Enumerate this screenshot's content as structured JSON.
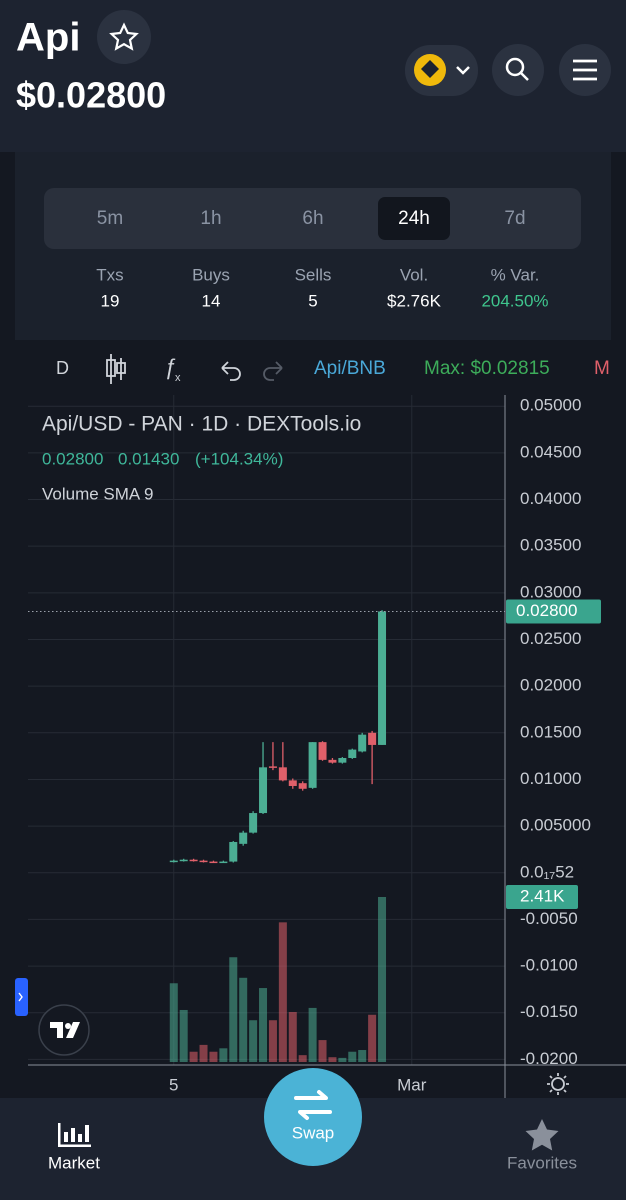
{
  "header": {
    "title": "Api",
    "price": "$0.02800"
  },
  "timeframes": {
    "options": [
      "5m",
      "1h",
      "6h",
      "24h",
      "7d"
    ],
    "active": 3
  },
  "stats": {
    "labels": [
      "Txs",
      "Buys",
      "Sells",
      "Vol.",
      "% Var."
    ],
    "values": [
      "19",
      "14",
      "5",
      "$2.76K",
      "204.50%"
    ]
  },
  "toolbar": {
    "interval": "D",
    "pair": "Api/BNB",
    "max": "Max: $0.02815",
    "min": "M"
  },
  "chart_data": {
    "type": "candlestick",
    "title": "Api/USD - PAN · 1D · DEXTools.io",
    "legend_values": [
      "0.02800",
      "0.01430",
      "(+104.34%)"
    ],
    "indicator": "Volume SMA 9",
    "open": [
      0.0012,
      0.0013,
      0.0014,
      0.0013,
      0.0012,
      0.0011,
      0.0012,
      0.0031,
      0.0043,
      0.0064,
      0.0114,
      0.0113,
      0.0099,
      0.0096,
      0.0091,
      0.014,
      0.0121,
      0.0118,
      0.0123,
      0.013,
      0.015,
      0.0137
    ],
    "high": [
      0.0014,
      0.0015,
      0.0015,
      0.0014,
      0.0013,
      0.0013,
      0.0034,
      0.0045,
      0.0066,
      0.014,
      0.014,
      0.014,
      0.0101,
      0.0098,
      0.014,
      0.0141,
      0.0123,
      0.0124,
      0.0133,
      0.015,
      0.0152,
      0.02815
    ],
    "low": [
      0.0011,
      0.0012,
      0.0012,
      0.0011,
      0.0011,
      0.0011,
      0.0011,
      0.0029,
      0.0042,
      0.0063,
      0.011,
      0.0098,
      0.009,
      0.0088,
      0.009,
      0.012,
      0.0117,
      0.0117,
      0.0122,
      0.0129,
      0.0095,
      0.0137
    ],
    "close": [
      0.0013,
      0.0014,
      0.0013,
      0.0012,
      0.0011,
      0.0012,
      0.0033,
      0.0043,
      0.0064,
      0.0113,
      0.0113,
      0.0099,
      0.0093,
      0.009,
      0.014,
      0.0121,
      0.0118,
      0.0123,
      0.0132,
      0.0148,
      0.0137,
      0.028
    ],
    "volume": [
      1150,
      760,
      150,
      250,
      150,
      200,
      1530,
      1230,
      610,
      1080,
      610,
      2040,
      730,
      100,
      790,
      320,
      70,
      60,
      150,
      175,
      690,
      2410
    ],
    "ylim": [
      -0.0206,
      0.0512
    ],
    "yticks": [
      {
        "value": 0.05,
        "label": "0.05000"
      },
      {
        "value": 0.045,
        "label": "0.04500"
      },
      {
        "value": 0.04,
        "label": "0.04000"
      },
      {
        "value": 0.035,
        "label": "0.03500"
      },
      {
        "value": 0.03,
        "label": "0.03000"
      },
      {
        "value": 0.025,
        "label": "0.02500"
      },
      {
        "value": 0.02,
        "label": "0.02000"
      },
      {
        "value": 0.015,
        "label": "0.01500"
      },
      {
        "value": 0.01,
        "label": "0.01000"
      },
      {
        "value": 0.005,
        "label": "0.005000"
      },
      {
        "value": 5.2e-19,
        "label": "0.0₁₇52"
      },
      {
        "value": -0.005,
        "label": "-0.0050"
      },
      {
        "value": -0.01,
        "label": "-0.0100"
      },
      {
        "value": -0.015,
        "label": "-0.0150"
      },
      {
        "value": -0.02,
        "label": "-0.0200"
      }
    ],
    "xlim": [
      -14.7,
      33.4
    ],
    "xticks": [
      {
        "value": 0,
        "label": "5"
      },
      {
        "value": 24,
        "label": "Mar"
      }
    ],
    "last_price": {
      "value": 0.028,
      "label": "0.02800"
    },
    "last_volume": {
      "value": 2410,
      "label": "2.41K"
    },
    "up_color": "#4cae94",
    "down_color": "#e0606a"
  },
  "nav": {
    "items": [
      "Market",
      "Swap",
      "Favorites"
    ]
  }
}
